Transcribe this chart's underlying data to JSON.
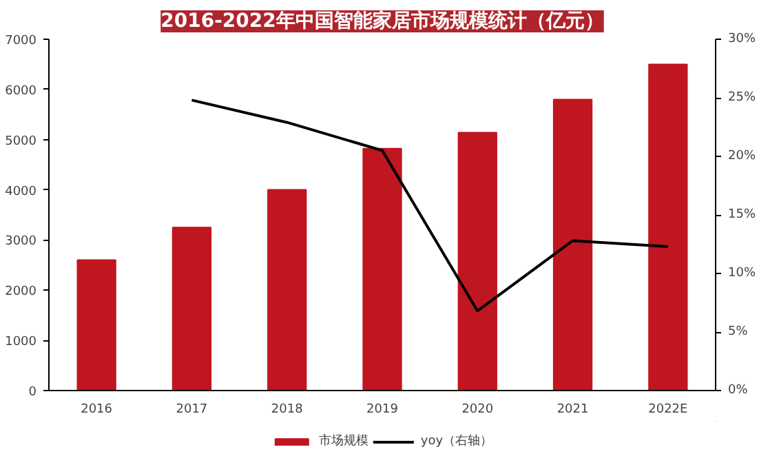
{
  "chart_data": {
    "type": "bar",
    "title": "2016-2022年中国智能家居市场规模统计（亿元）",
    "categories": [
      "2016",
      "2017",
      "2018",
      "2019",
      "2020",
      "2021",
      "2022E"
    ],
    "series": [
      {
        "name": "市场规模",
        "color": "#c0161f",
        "values": [
          2600,
          3250,
          4000,
          4820,
          5140,
          5800,
          6500
        ]
      },
      {
        "name": "yoy（右轴）",
        "color": "#000000",
        "type": "line",
        "axis": "y2",
        "values": [
          null,
          24.8,
          22.9,
          20.5,
          6.8,
          12.8,
          12.3
        ]
      }
    ],
    "ylim": [
      0,
      7000
    ],
    "yticks": [
      0,
      1000,
      2000,
      3000,
      4000,
      5000,
      6000,
      7000
    ],
    "y2lim": [
      0,
      30
    ],
    "y2ticks": [
      {
        "value": 0,
        "label": "0%"
      },
      {
        "value": 5,
        "label": "5%"
      },
      {
        "value": 10,
        "label": "10%"
      },
      {
        "value": 15,
        "label": "15%"
      },
      {
        "value": 20,
        "label": "20%"
      },
      {
        "value": 25,
        "label": "25%"
      },
      {
        "value": 30,
        "label": "30%"
      }
    ],
    "grid": false,
    "legend": "bottom",
    "marker": "none",
    "line_style": "solid"
  }
}
